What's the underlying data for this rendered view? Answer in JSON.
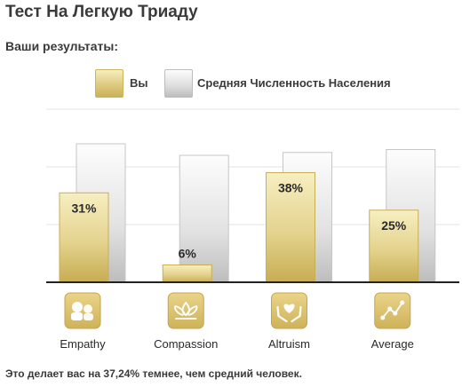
{
  "title": "Тест На Легкую Триаду",
  "subtitle": "Ваши результаты:",
  "legend": {
    "you": "Вы",
    "average": "Средняя Численность Населения"
  },
  "chart_data": {
    "type": "bar",
    "categories": [
      "Empathy",
      "Compassion",
      "Altruism",
      "Average"
    ],
    "series": [
      {
        "name": "Вы",
        "values": [
          31,
          6,
          38,
          25
        ],
        "labels": [
          "31%",
          "6%",
          "38%",
          "25%"
        ]
      },
      {
        "name": "Средняя Численность Населения",
        "values": [
          48,
          44,
          45,
          46
        ]
      }
    ],
    "ylim": [
      0,
      60
    ],
    "grid": true,
    "legend_position": "top-center",
    "icons": [
      "empathy-icon",
      "compassion-icon",
      "altruism-icon",
      "average-icon"
    ],
    "colors": {
      "you": "#d8c46e",
      "average": "#d4d4d4",
      "icon_bg": "#dcc36c"
    }
  },
  "footer": "Это делает вас на 37,24% темнее, чем средний человек."
}
